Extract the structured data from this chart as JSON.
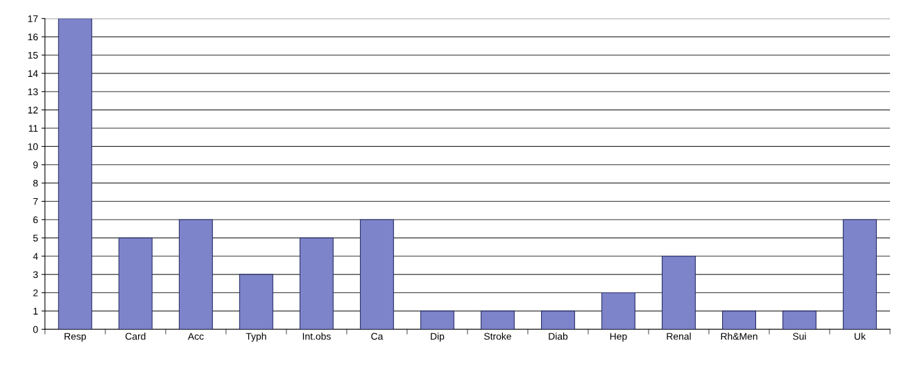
{
  "chart_data": {
    "type": "bar",
    "categories": [
      "Resp",
      "Card",
      "Acc",
      "Typh",
      "Int.obs",
      "Ca",
      "Dip",
      "Stroke",
      "Diab",
      "Hep",
      "Renal",
      "Rh&Men",
      "Sui",
      "Uk"
    ],
    "values": [
      17,
      5,
      6,
      3,
      5,
      6,
      1,
      1,
      1,
      2,
      4,
      1,
      1,
      6
    ],
    "color": "#7d84c9",
    "ylim": [
      0,
      17
    ],
    "yticks": [
      0,
      1,
      2,
      3,
      4,
      5,
      6,
      7,
      8,
      9,
      10,
      11,
      12,
      13,
      14,
      15,
      16,
      17
    ],
    "grid": "y"
  }
}
